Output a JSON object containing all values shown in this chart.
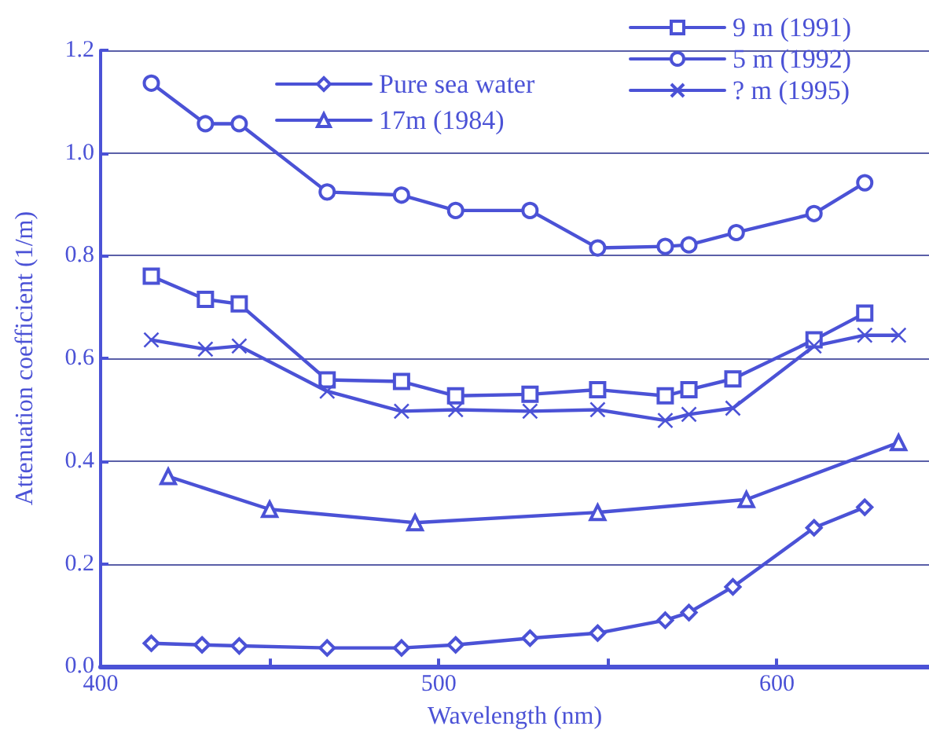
{
  "chart_data": {
    "type": "line",
    "xlabel": "Wavelength (nm)",
    "ylabel": "Attenuation coefficient (1/m)",
    "xlim": [
      400,
      645
    ],
    "xticks": [
      400,
      {
        "value": 450,
        "label": null
      },
      500,
      {
        "value": 550,
        "label": null
      },
      600
    ],
    "ylim": [
      0,
      1.2
    ],
    "yticks": [
      {
        "value": 0,
        "label": "0.0"
      },
      0.2,
      0.4,
      0.6,
      0.8,
      {
        "value": 1,
        "label": "1.0"
      },
      1.2
    ],
    "grid": "y",
    "legend": "top",
    "line_style": "solid",
    "series": [
      {
        "name": "Pure sea water",
        "color": "#4b52d6",
        "marker": "diamond",
        "x": [
          415,
          430,
          441,
          467,
          489,
          505,
          527,
          547,
          567,
          574,
          587,
          611,
          626
        ],
        "values": [
          0.045,
          0.042,
          0.04,
          0.036,
          0.036,
          0.042,
          0.055,
          0.065,
          0.09,
          0.105,
          0.155,
          0.27,
          0.31
        ]
      },
      {
        "name": "17m (1984)",
        "color": "#4b52d6",
        "marker": "triangle",
        "x": [
          420,
          450,
          493,
          547,
          591,
          636
        ],
        "values": [
          0.37,
          0.306,
          0.28,
          0.3,
          0.325,
          0.436
        ]
      },
      {
        "name": "9 m (1991)",
        "color": "#4b52d6",
        "marker": "square",
        "x": [
          415,
          431,
          441,
          467,
          489,
          505,
          527,
          547,
          567,
          574,
          587,
          611,
          626
        ],
        "values": [
          0.76,
          0.715,
          0.706,
          0.558,
          0.555,
          0.527,
          0.53,
          0.539,
          0.527,
          0.539,
          0.56,
          0.636,
          0.688
        ]
      },
      {
        "name": "5 m (1992)",
        "color": "#4b52d6",
        "marker": "circle",
        "x": [
          415,
          431,
          441,
          467,
          489,
          505,
          527,
          547,
          567,
          574,
          588,
          611,
          626
        ],
        "values": [
          1.136,
          1.057,
          1.057,
          0.924,
          0.918,
          0.888,
          0.888,
          0.815,
          0.818,
          0.821,
          0.845,
          0.882,
          0.942
        ]
      },
      {
        "name": "? m (1995)",
        "color": "#4b52d6",
        "marker": "cross",
        "x": [
          415,
          431,
          441,
          467,
          489,
          505,
          527,
          547,
          567,
          574,
          587,
          611,
          626,
          636
        ],
        "values": [
          0.636,
          0.618,
          0.624,
          0.536,
          0.497,
          0.5,
          0.497,
          0.5,
          0.479,
          0.491,
          0.503,
          0.624,
          0.645,
          0.645
        ]
      }
    ]
  }
}
